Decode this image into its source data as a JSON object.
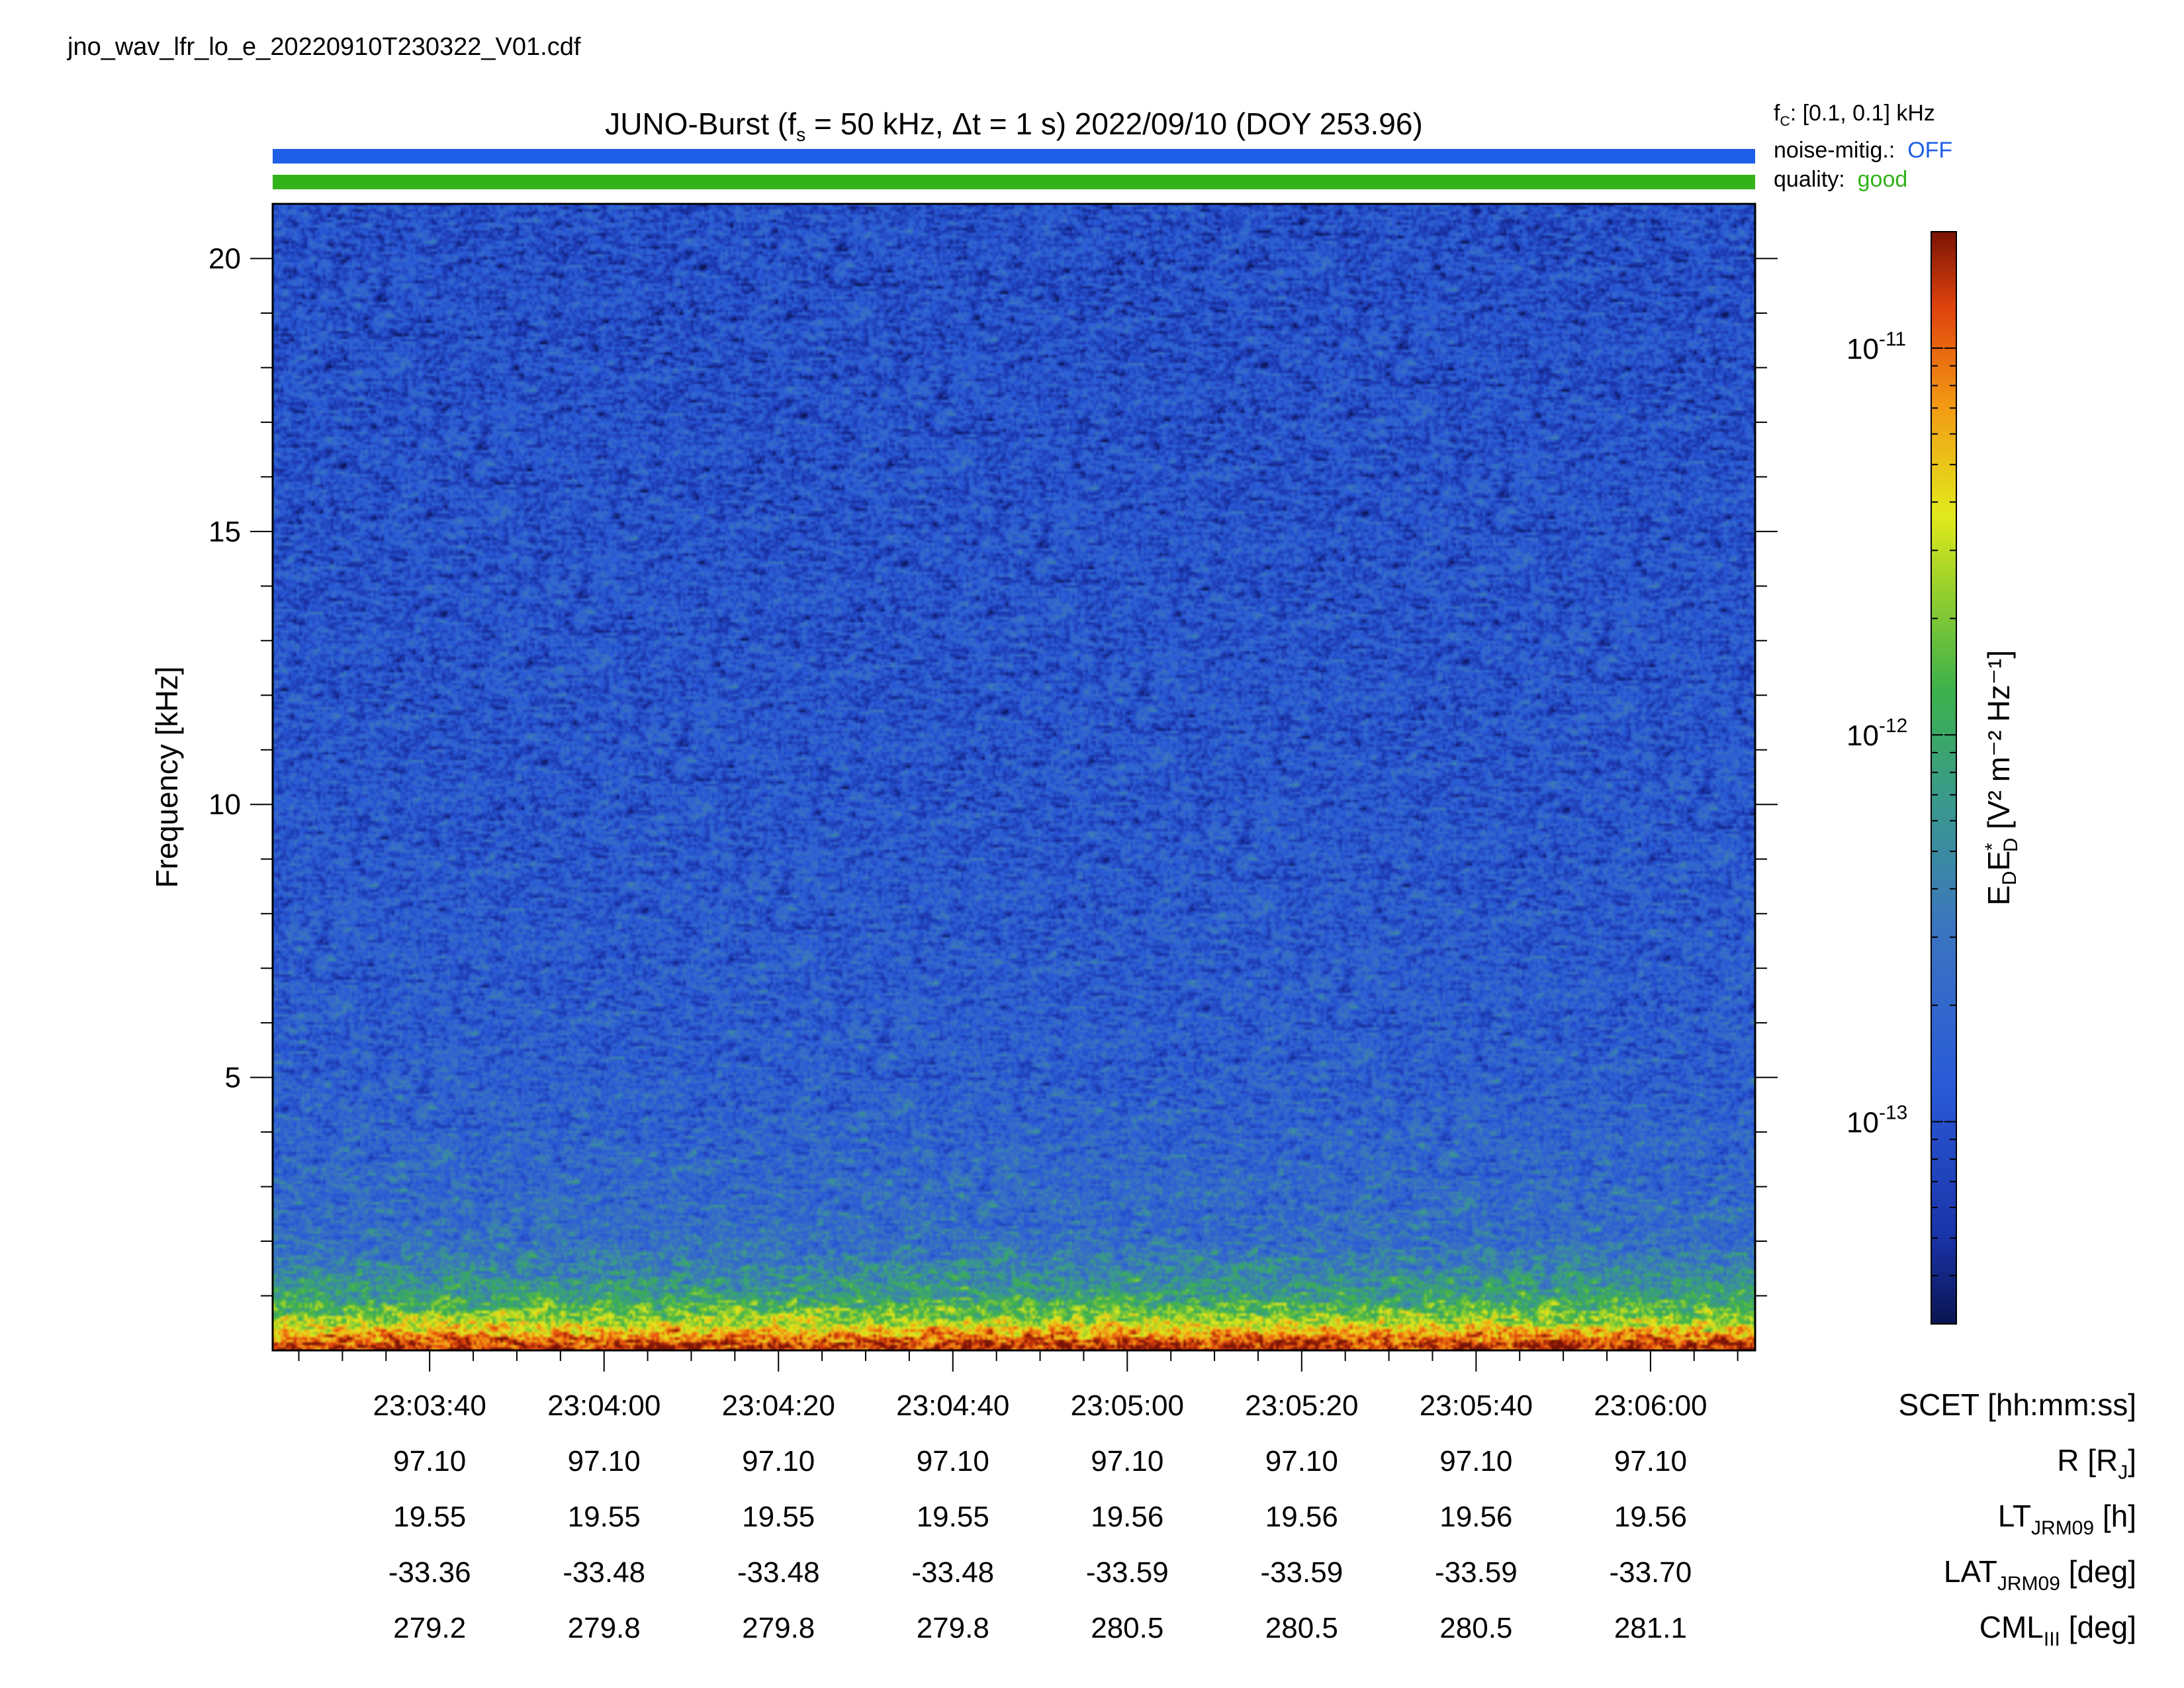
{
  "file_name": "jno_wav_lfr_lo_e_20220910T230322_V01.cdf",
  "status": {
    "fc_label": "f",
    "fc_sub": "C",
    "fc_value": ": [0.1, 0.1] kHz",
    "noise_label": "noise-mitig.:",
    "noise_value": "OFF",
    "quality_label": "quality:",
    "quality_value": "good"
  },
  "colors": {
    "noise_bar": "#1f5fe8",
    "quality_bar": "#33b31a",
    "noise_value": "#1f5fe8",
    "quality_value": "#33b31a"
  },
  "chart_data": {
    "type": "heatmap",
    "title": {
      "prefix": "JUNO-Burst (f",
      "prefix_sub": "s",
      "middle": " = 50 kHz, Δt = 1 s)  2022/09/10 (DOY 253.96)"
    },
    "ylabel": "Frequency [kHz]",
    "ylim": [
      0,
      21
    ],
    "yticks": [
      5,
      10,
      15,
      20
    ],
    "xlabel": "SCET [hh:mm:ss]",
    "xticks": [
      "23:03:40",
      "23:04:00",
      "23:04:20",
      "23:04:40",
      "23:05:00",
      "23:05:20",
      "23:05:40",
      "23:06:00"
    ],
    "xlim_seconds": [
      202,
      372
    ],
    "xtick_seconds": [
      220,
      240,
      260,
      280,
      300,
      320,
      340,
      360
    ],
    "colorbar": {
      "label_main": "E",
      "label_sub1": "D",
      "label_mid": "E",
      "label_sup": "*",
      "label_sub2": "D",
      "label_units": " [V² m⁻² Hz⁻¹]",
      "scale": "log",
      "range": [
        3e-14,
        2e-11
      ],
      "ticks": [
        {
          "base": "10",
          "exp": "-11",
          "value": 1e-11
        },
        {
          "base": "10",
          "exp": "-12",
          "value": 1e-12
        },
        {
          "base": "10",
          "exp": "-13",
          "value": 1e-13
        }
      ]
    },
    "description_profile": {
      "frequency_kHz": [
        0.1,
        0.5,
        1.0,
        2.0,
        5.0,
        10.0,
        15.0,
        20.0,
        21.0
      ],
      "typical_power": [
        1.5e-11,
        3e-12,
        8e-13,
        2.5e-13,
        1.5e-13,
        1.2e-13,
        1.1e-13,
        1e-13,
        1e-13
      ]
    },
    "ephemeris_rows": [
      {
        "label": "R [R",
        "sub": "J",
        "after": "]",
        "values": [
          "97.10",
          "97.10",
          "97.10",
          "97.10",
          "97.10",
          "97.10",
          "97.10",
          "97.10"
        ]
      },
      {
        "label": "LT",
        "sub": "JRM09",
        "after": " [h]",
        "values": [
          "19.55",
          "19.55",
          "19.55",
          "19.55",
          "19.56",
          "19.56",
          "19.56",
          "19.56"
        ]
      },
      {
        "label": "LAT",
        "sub": "JRM09",
        "after": " [deg]",
        "values": [
          "-33.36",
          "-33.48",
          "-33.48",
          "-33.48",
          "-33.59",
          "-33.59",
          "-33.59",
          "-33.70"
        ]
      },
      {
        "label": "CML",
        "sub": "III",
        "after": " [deg]",
        "values": [
          "279.2",
          "279.8",
          "279.8",
          "279.8",
          "280.5",
          "280.5",
          "280.5",
          "281.1"
        ]
      }
    ]
  }
}
